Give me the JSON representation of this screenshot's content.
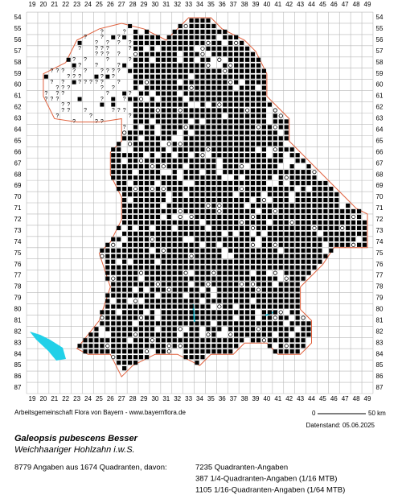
{
  "grid": {
    "columns": [
      19,
      20,
      21,
      22,
      23,
      24,
      25,
      26,
      27,
      28,
      29,
      30,
      31,
      32,
      33,
      34,
      35,
      36,
      37,
      38,
      39,
      40,
      41,
      42,
      43,
      44,
      45,
      46,
      47,
      48,
      49
    ],
    "rows": [
      54,
      55,
      56,
      57,
      58,
      59,
      60,
      61,
      62,
      63,
      64,
      65,
      66,
      67,
      68,
      69,
      70,
      71,
      72,
      73,
      74,
      75,
      76,
      77,
      78,
      79,
      80,
      81,
      82,
      83,
      84,
      85,
      86,
      87
    ]
  },
  "credit": "Arbeitsgemeinschaft Flora von Bayern - www.bayernflora.de",
  "scale": {
    "start": "0",
    "end": "50 km"
  },
  "date": "Datenstand: 05.06.2025",
  "species": {
    "name": "Galeopsis pubescens Besser",
    "common": "Weichhaariger Hohlzahn i.w.S."
  },
  "summary": "8779 Angaben aus 1674 Quadranten, davon:",
  "breakdown": [
    "7235 Quadranten-Angaben",
    "387 1/4-Quadranten-Angaben (1/16 MTB)",
    "1105 1/16-Quadranten-Angaben (1/64 MTB)"
  ]
}
